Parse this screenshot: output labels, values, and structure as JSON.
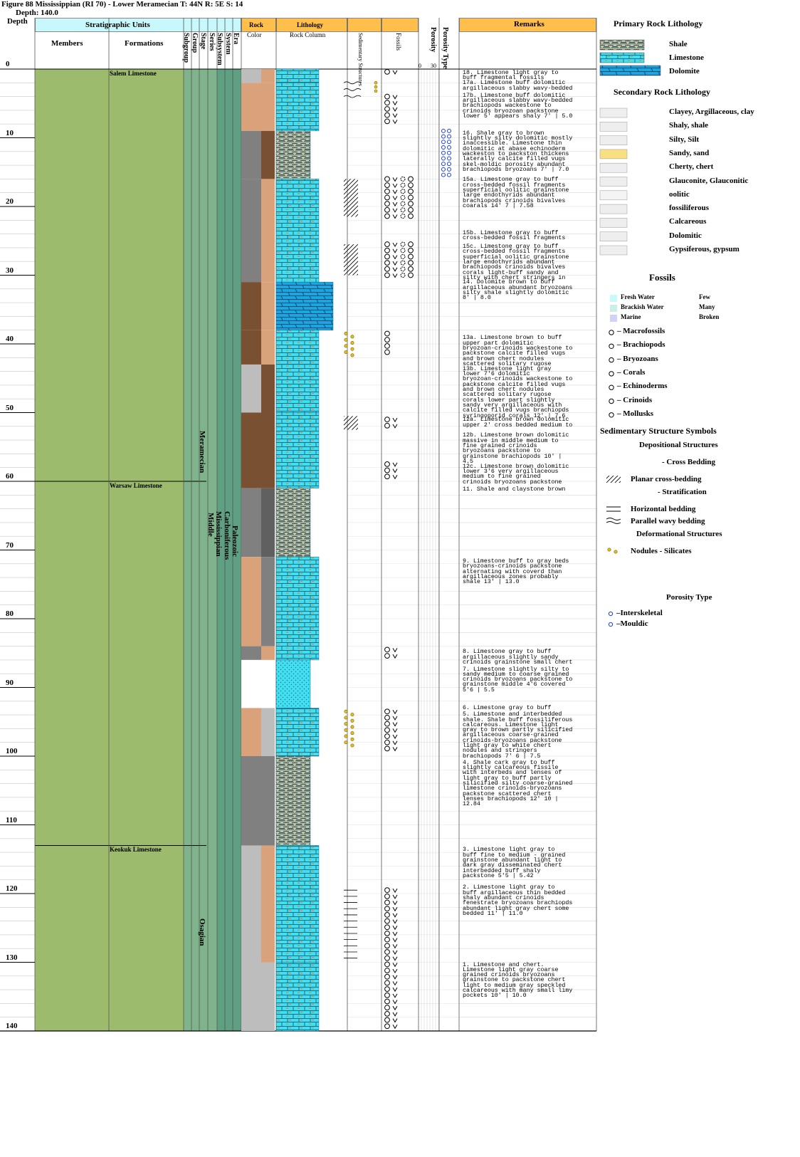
{
  "title": "Figure 88 Mississippian (RI 70) - Lower Meramecian T: 44N R: 5E S: 14",
  "depth_label": "Depth: 140.0",
  "headers": {
    "depth": "Depth",
    "strat_units": "Stratigraphic Units",
    "members": "Members",
    "formations": "Formations",
    "subgroup": "Subgroup",
    "group": "Group",
    "stage": "Stage",
    "series": "Series",
    "subsystem": "Subsystem",
    "system": "System",
    "era": "Era",
    "rock": "Rock",
    "rock_color": "Color",
    "lithology": "Lithology",
    "rock_column": "Rock Column",
    "sed_structures": "Sedimentary Structures",
    "fossils": "Fossils",
    "porosity": "Porosity",
    "porosity_type": "Porosity Type",
    "remarks": "Remarks",
    "porosity_min": "0",
    "porosity_max": "30"
  },
  "depth_ticks": [
    "0",
    "10",
    "20",
    "30",
    "40",
    "50",
    "60",
    "70",
    "80",
    "90",
    "100",
    "110",
    "120",
    "130",
    "140"
  ],
  "formations": [
    {
      "name": "Salem Limestone",
      "top": 0,
      "bottom": 60
    },
    {
      "name": "Warsaw Limestone",
      "top": 60,
      "bottom": 113
    },
    {
      "name": "Keokuk Limestone",
      "top": 113,
      "bottom": 140
    }
  ],
  "chrono": {
    "stage_meramecian": "Meramecian",
    "stage_osagian": "Osagian",
    "series": "Middle",
    "subsystem": "Mississippian",
    "system": "Carboniferous",
    "era": "Paleozoic"
  },
  "units": [
    {
      "top": 0,
      "bottom": 2,
      "c1": "#bdbdbd",
      "c2": "#d9a27a",
      "lith": "ls"
    },
    {
      "top": 2,
      "bottom": 9,
      "c1": "#d9a27a",
      "c2": "#d9a27a",
      "lith": "ls"
    },
    {
      "top": 9,
      "bottom": 16,
      "c1": "#808080",
      "c2": "#7a5032",
      "lith": "sh"
    },
    {
      "top": 16,
      "bottom": 31,
      "c1": "#808080",
      "c2": "#d9a27a",
      "lith": "ls"
    },
    {
      "top": 31,
      "bottom": 38,
      "c1": "#7a5032",
      "c2": "#d9a27a",
      "lith": "dol"
    },
    {
      "top": 38,
      "bottom": 43,
      "c1": "#7a5032",
      "c2": "#d9a27a",
      "lith": "ls"
    },
    {
      "top": 43,
      "bottom": 50,
      "c1": "#bdbdbd",
      "c2": "#7a5032",
      "lith": "ls"
    },
    {
      "top": 50,
      "bottom": 61,
      "c1": "#7a5032",
      "c2": "#7a5032",
      "lith": "ls"
    },
    {
      "top": 61,
      "bottom": 71,
      "c1": "#808080",
      "c2": "#606060",
      "lith": "sh"
    },
    {
      "top": 71,
      "bottom": 84,
      "c1": "#d9a27a",
      "c2": "#808080",
      "lith": "ls"
    },
    {
      "top": 84,
      "bottom": 86,
      "c1": "#808080",
      "c2": "#d9a27a",
      "lith": "ls"
    },
    {
      "top": 86,
      "bottom": 93,
      "c1": "#ffffff",
      "c2": "#ffffff",
      "lith": "ss"
    },
    {
      "top": 93,
      "bottom": 100,
      "c1": "#d9a27a",
      "c2": "#bdbdbd",
      "lith": "ls"
    },
    {
      "top": 100,
      "bottom": 113,
      "c1": "#808080",
      "c2": "#808080",
      "lith": "sh"
    },
    {
      "top": 113,
      "bottom": 130,
      "c1": "#bdbdbd",
      "c2": "#d9a27a",
      "lith": "ls"
    },
    {
      "top": 130,
      "bottom": 140,
      "c1": "#bdbdbd",
      "c2": "#bdbdbd",
      "lith": "ls"
    }
  ],
  "remarks": [
    {
      "depth": 0.2,
      "text": "18. Limestone light gray to\nbuff fragmental fossils"
    },
    {
      "depth": 1.7,
      "text": "17a. Limestone buff dolomitic\nargillaceous slabby wavy-bedded"
    },
    {
      "depth": 3.5,
      "text": "17b. Limestone buff dolomitic\nargillaceous slabby wavy-bedded\nbrachiopods wackestone to\ncrinoids bryozoan packstone\nlower 5' appears shaly 7' | 5.0"
    },
    {
      "depth": 9.0,
      "text": "16. Shale gray to brown\nslightly silty dolomitic mostly\ninaccessible. Limestone thin\ndolomitic at abase echinoderm\nwackeston to packston thickens\nlaterally calcite filled vugs\nskel-moldic porosity abundant\nbrachiopods bryozoans 7' | 7.0"
    },
    {
      "depth": 15.8,
      "text": "15a. Limestone gray to buff\ncross-bedded fossil fragments\nsuperficial oolitic grainstone\nlarge endothyrids abundant\nbrachiopods crinoids bivalves\ncoarals 14' 7 | 7.58"
    },
    {
      "depth": 23.5,
      "text": "15b. Limestone gray to buff\ncross-bedded fossil fragments"
    },
    {
      "depth": 25.5,
      "text": "15c. Limestone gray to buff\ncross-bedded fossil fragments\nsuperficial oolitic grainstone\nlarge endothyrids abundant\nbrachiopods crinoids bivalves\ncorals light-buff sandy and\nsilty with chert stringers in"
    },
    {
      "depth": 30.7,
      "text": "14. Dolomite brown to buff\nargillaceous abundant bryozoans\nsilty shale slightly dolomitic\n8' | 8.0"
    },
    {
      "depth": 38.8,
      "text": "13a. Limestone brown to buff\nupper part dolomitic\nbryozoan-crinoids wackestone to\npackstone calcite filled vugs\nand brown chert nodules\nscattered solitary rugose"
    },
    {
      "depth": 43.3,
      "text": "13b. Limestone light gray\nlower 7'6 dolomitic\nbryozoan-crinoids wackestone to\npackstone calcite filled vugs\nand brown chert nodules\nscattered solitary rugose\ncorals lower part slightly\nsandy very argillaceous with\ncalcite filled vugs brachiopds\nsyringoporid corals 12' | 7.6"
    },
    {
      "depth": 50.7,
      "text": "12a. Limestone brown dolomitic\nupper 2' cross bedded medium to"
    },
    {
      "depth": 53.0,
      "text": "12b. Limestone brown dolomitic\nmassive in middle medium to\nfine grained crinoids\nbryozoans packstone to\ngrainstone brachiopods 10' |\n4.5"
    },
    {
      "depth": 57.5,
      "text": "12c. Limestone brown dolomitic\nlower 3'6 very argillaceous\nmedium to fine grained\ncrinoids bryozoans packstone"
    },
    {
      "depth": 60.8,
      "text": "11. Shale and claystone brown"
    },
    {
      "depth": 71.3,
      "text": "9. Limestone buff to gray beds\nbryozoans-crinoids packstone\nalternating with coverd than\nargillaceous zones probably\nshale 13' | 13.0"
    },
    {
      "depth": 84.5,
      "text": "8. Limestone gray to buff\nargillaceous slightly sandy\ncrinoids grainstone small chert"
    },
    {
      "depth": 87.0,
      "text": "7. Limestone slightly silty to\nsandy medium to coarse grained\ncrinoids bryozoans packstone to\ngrainstone middle 4'6 covered\n5'6 | 5.5"
    },
    {
      "depth": 92.6,
      "text": "6. Limestone gray to buff"
    },
    {
      "depth": 93.6,
      "text": "5. Limestone and interbedded\nshale. Shale buff fossiliferous\ncalcareous. Limestone light\ngray to brown partly silicified\nargillaceous coarse-grained\ncrinoids-bryozoans packstone\nlight gray to white chert\nnodules and stringers\nbrachiopods 7' 6 | 7.5"
    },
    {
      "depth": 100.6,
      "text": "4. Shale cark gray to buff\nslightly calcareous fissile\nwith interbeds and lenses of\nlight gray to buff partly\nsilicified silty coarse-grained\nlimestone crinoids-bryozoans\npackstone scattered chert\nlenses brachiopods 12' 10 |\n12.84"
    },
    {
      "depth": 113.3,
      "text": "3. Limestone light gray to\nbuff fine to medium - grained\ngrainstone abundant light to\ndark gray disseminated chert\ninterbedded buff shaly\npackstone 5'5 | 5.42"
    },
    {
      "depth": 118.8,
      "text": "2. Limestone light gray to\nbuff argillaceous thin bedded\nshaly abundant crinoids\nfenestrate bryozoans brachiopds\nabundant light gray chert some\nbedded 11' | 11.0"
    },
    {
      "depth": 130.0,
      "text": "1. Limestone and chert.\nLimestone light gray coarse\ngrained crinoids bryozoans\ngrainstone to packstone chert\nlight to medium gray speckled\ncalcareous with many small limy\npockets 10' | 10.0"
    }
  ],
  "legend": {
    "primary_title": "Primary Rock Lithology",
    "primary": [
      "Shale",
      "Limestone",
      "Dolomite"
    ],
    "secondary_title": "Secondary Rock Lithology",
    "secondary": [
      "Clayey, Argillaceous, clay",
      "Shaly, shale",
      "Silty, Silt",
      "Sandy, sand",
      "Cherty, chert",
      "Glauconite, Glauconitic",
      "oolitic",
      "fossiliferous",
      "Calcareous",
      "Dolomitic",
      "Gypsiferous, gypsum"
    ],
    "fossils_title": "Fossils",
    "water": [
      "Fresh Water",
      "Brackish Water",
      "Marine"
    ],
    "abundance": [
      "Few",
      "Many",
      "Broken"
    ],
    "fossil_types": [
      "– Macrofossils",
      "– Brachiopods",
      "– Bryozoans",
      "– Corals",
      "– Echinoderms",
      "– Crinoids",
      "– Mollusks"
    ],
    "sed_title": "Sedimentary Structure Symbols",
    "depositional_title": "Depositional Structures",
    "cross_bedding_title": "- Cross Bedding",
    "planar": "Planar cross-bedding",
    "strat_title": "- Stratification",
    "horizontal": "Horizontal bedding",
    "wavy": "Parallel wavy bedding",
    "deformational_title": "Deformational Structures",
    "nodules": "Nodules - Silicates",
    "porosity_title": "Porosity Type",
    "porosity": [
      "–Interskeletal",
      "–Mouldic"
    ]
  },
  "colors": {
    "header_cyan": "#c8f8fb",
    "header_orange": "#ffbf4a",
    "member_green": "#9cbb6c",
    "teal": "#5fa083",
    "limestone": "#40e0f0",
    "dolomite": "#1aa7e0",
    "buff": "#d9a27a",
    "brown": "#7a5032",
    "gray": "#808080",
    "lightgray": "#bdbdbd"
  }
}
